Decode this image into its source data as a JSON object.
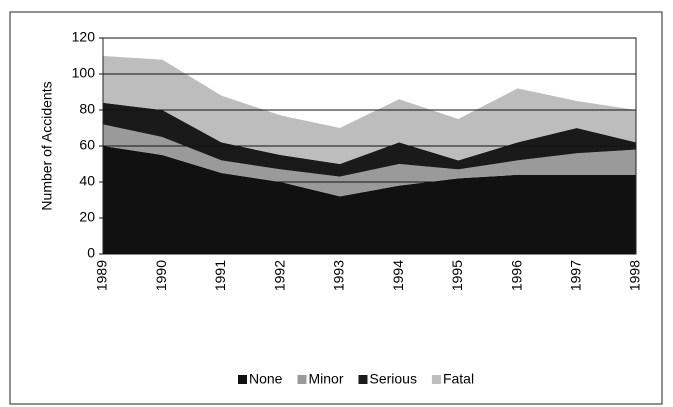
{
  "chart_data": {
    "type": "stacked_area",
    "y_label": "Number of Accidents",
    "categories": [
      "1989",
      "1990",
      "1991",
      "1992",
      "1993",
      "1994",
      "1995",
      "1996",
      "1997",
      "1998"
    ],
    "series": [
      {
        "name": "None",
        "color": "#111111",
        "values": [
          60,
          55,
          45,
          40,
          32,
          38,
          42,
          44,
          44,
          44
        ]
      },
      {
        "name": "Minor",
        "color": "#9a9a9a",
        "values": [
          12,
          10,
          7,
          7,
          11,
          12,
          5,
          8,
          12,
          14
        ]
      },
      {
        "name": "Serious",
        "color": "#1a1a1a",
        "values": [
          12,
          15,
          10,
          8,
          7,
          12,
          5,
          10,
          14,
          4
        ]
      },
      {
        "name": "Fatal",
        "color": "#bdbdbd",
        "values": [
          26,
          28,
          26,
          22,
          20,
          24,
          23,
          30,
          15,
          18
        ]
      }
    ],
    "ylim": [
      0,
      120
    ],
    "yticks": [
      0,
      20,
      40,
      60,
      80,
      100,
      120
    ],
    "grid": true
  }
}
